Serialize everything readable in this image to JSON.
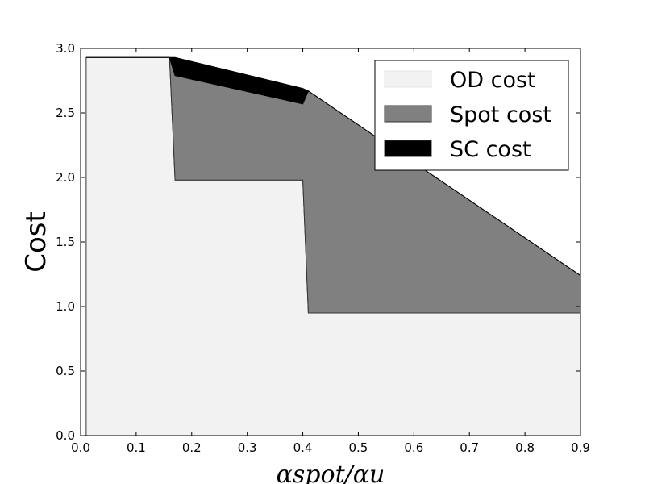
{
  "chart_data": {
    "type": "area",
    "stacked": true,
    "xlabel": "αspot/αu",
    "ylabel": "Cost",
    "xlim": [
      0.0,
      0.9
    ],
    "ylim": [
      0.0,
      3.0
    ],
    "xticks": [
      "0.0",
      "0.1",
      "0.2",
      "0.3",
      "0.4",
      "0.5",
      "0.6",
      "0.7",
      "0.8",
      "0.9"
    ],
    "yticks": [
      "0.0",
      "0.5",
      "1.0",
      "1.5",
      "2.0",
      "2.5",
      "3.0"
    ],
    "legend_position": "top-right",
    "grid": false,
    "series": [
      {
        "name": "OD cost",
        "color": "#f2f2f2",
        "x": [
          0.01,
          0.16,
          0.17,
          0.4,
          0.41,
          0.9
        ],
        "y": [
          2.93,
          2.93,
          1.98,
          1.98,
          0.95,
          0.95
        ]
      },
      {
        "name": "Spot cost",
        "color": "#808080",
        "x": [
          0.01,
          0.16,
          0.17,
          0.4,
          0.41,
          0.9
        ],
        "y": [
          0.0,
          0.0,
          0.81,
          0.59,
          1.72,
          0.29
        ]
      },
      {
        "name": "SC cost",
        "color": "#000000",
        "x": [
          0.01,
          0.16,
          0.17,
          0.4,
          0.41,
          0.9
        ],
        "y": [
          0.0,
          0.0,
          0.14,
          0.12,
          0.0,
          0.0
        ]
      }
    ]
  }
}
